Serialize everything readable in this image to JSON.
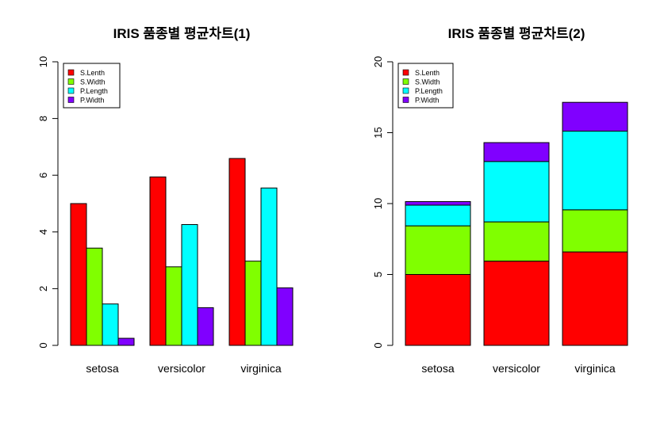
{
  "colors": [
    "#ff0000",
    "#80ff00",
    "#00ffff",
    "#8000ff"
  ],
  "chart_data": [
    {
      "type": "bar",
      "mode": "grouped",
      "title": "IRIS 품종별 평균차트(1)",
      "categories": [
        "setosa",
        "versicolor",
        "virginica"
      ],
      "ylim": [
        0,
        10
      ],
      "yticks": [
        0,
        2,
        4,
        6,
        8,
        10
      ],
      "legend_position": "top-left",
      "series": [
        {
          "name": "S.Lenth",
          "values": [
            5.0,
            5.94,
            6.59
          ]
        },
        {
          "name": "S.Width",
          "values": [
            3.43,
            2.77,
            2.97
          ]
        },
        {
          "name": "P.Length",
          "values": [
            1.46,
            4.26,
            5.55
          ]
        },
        {
          "name": "P.Width",
          "values": [
            0.25,
            1.33,
            2.03
          ]
        }
      ]
    },
    {
      "type": "bar",
      "mode": "stacked",
      "title": "IRIS 품종별 평균차트(2)",
      "categories": [
        "setosa",
        "versicolor",
        "virginica"
      ],
      "ylim": [
        0,
        20
      ],
      "yticks": [
        0,
        5,
        10,
        15,
        20
      ],
      "legend_position": "top-left",
      "series": [
        {
          "name": "S.Lenth",
          "values": [
            5.0,
            5.94,
            6.59
          ]
        },
        {
          "name": "S.Width",
          "values": [
            3.43,
            2.77,
            2.97
          ]
        },
        {
          "name": "P.Length",
          "values": [
            1.46,
            4.26,
            5.55
          ]
        },
        {
          "name": "P.Width",
          "values": [
            0.25,
            1.33,
            2.03
          ]
        }
      ]
    }
  ]
}
